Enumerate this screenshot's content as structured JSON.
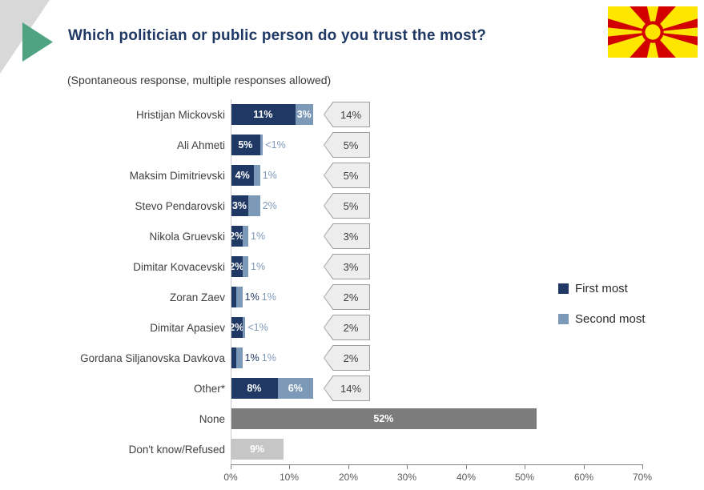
{
  "header": {
    "title": "Which politician or public person do you trust the most?",
    "subtitle": "(Spontaneous response, multiple responses allowed)"
  },
  "decoration": {
    "green_triangle_color": "#4FA383",
    "corner_color": "#D8D8D8"
  },
  "flag": {
    "name": "north-macedonia-flag",
    "red": "#D20000",
    "yellow": "#FFE600"
  },
  "legend": {
    "items": [
      {
        "key": "first",
        "label": "First most",
        "color": "#1F3864"
      },
      {
        "key": "second",
        "label": "Second most",
        "color": "#7D99B8"
      }
    ]
  },
  "chart_data": {
    "type": "bar",
    "orientation": "horizontal",
    "stacked": true,
    "title": "Which politician or public person do you trust the most?",
    "xlim": [
      0,
      70
    ],
    "x_ticks": [
      "0%",
      "10%",
      "20%",
      "30%",
      "40%",
      "50%",
      "60%",
      "70%"
    ],
    "grid": false,
    "legend_position": "right",
    "colors": {
      "first": "#1F3864",
      "second": "#7D99B8",
      "none": "#7C7C7C",
      "dk": "#C6C6C6",
      "callout_fill": "#EDEDED",
      "callout_border": "#9E9E9E"
    },
    "rows": [
      {
        "category": "Hristijan Mickovski",
        "total": "14%",
        "segments": [
          {
            "series": "first",
            "value": 11,
            "label": "11%",
            "label_pos": "inside"
          },
          {
            "series": "second",
            "value": 3,
            "label": "3%",
            "label_pos": "inside"
          }
        ]
      },
      {
        "category": "Ali Ahmeti",
        "total": "5%",
        "segments": [
          {
            "series": "first",
            "value": 5,
            "label": "5%",
            "label_pos": "inside"
          },
          {
            "series": "second",
            "value": 0.5,
            "label": "<1%",
            "label_pos": "outside"
          }
        ]
      },
      {
        "category": "Maksim Dimitrievski",
        "total": "5%",
        "segments": [
          {
            "series": "first",
            "value": 4,
            "label": "4%",
            "label_pos": "inside"
          },
          {
            "series": "second",
            "value": 1,
            "label": "1%",
            "label_pos": "outside"
          }
        ]
      },
      {
        "category": "Stevo Pendarovski",
        "total": "5%",
        "segments": [
          {
            "series": "first",
            "value": 3,
            "label": "3%",
            "label_pos": "inside"
          },
          {
            "series": "second",
            "value": 2,
            "label": "2%",
            "label_pos": "outside"
          }
        ]
      },
      {
        "category": "Nikola Gruevski",
        "total": "3%",
        "segments": [
          {
            "series": "first",
            "value": 2,
            "label": "2%",
            "label_pos": "inside"
          },
          {
            "series": "second",
            "value": 1,
            "label": "1%",
            "label_pos": "outside"
          }
        ]
      },
      {
        "category": "Dimitar Kovacevski",
        "total": "3%",
        "segments": [
          {
            "series": "first",
            "value": 2,
            "label": "2%",
            "label_pos": "inside"
          },
          {
            "series": "second",
            "value": 1,
            "label": "1%",
            "label_pos": "outside"
          }
        ]
      },
      {
        "category": "Zoran Zaev",
        "total": "2%",
        "segments": [
          {
            "series": "first",
            "value": 1,
            "label": "1%",
            "label_pos": "outside"
          },
          {
            "series": "second",
            "value": 1,
            "label": "1%",
            "label_pos": "outside"
          }
        ]
      },
      {
        "category": "Dimitar Apasiev",
        "total": "2%",
        "segments": [
          {
            "series": "first",
            "value": 2,
            "label": "2%",
            "label_pos": "inside"
          },
          {
            "series": "second",
            "value": 0.5,
            "label": "<1%",
            "label_pos": "outside"
          }
        ]
      },
      {
        "category": "Gordana Siljanovska Davkova",
        "total": "2%",
        "segments": [
          {
            "series": "first",
            "value": 1,
            "label": "1%",
            "label_pos": "outside"
          },
          {
            "series": "second",
            "value": 1,
            "label": "1%",
            "label_pos": "outside"
          }
        ]
      },
      {
        "category": "Other*",
        "total": "14%",
        "segments": [
          {
            "series": "first",
            "value": 8,
            "label": "8%",
            "label_pos": "inside"
          },
          {
            "series": "second",
            "value": 6,
            "label": "6%",
            "label_pos": "inside"
          }
        ]
      },
      {
        "category": "None",
        "total": null,
        "segments": [
          {
            "series": "none",
            "value": 52,
            "label": "52%",
            "label_pos": "inside"
          }
        ]
      },
      {
        "category": "Don't know/Refused",
        "total": null,
        "segments": [
          {
            "series": "dk",
            "value": 9,
            "label": "9%",
            "label_pos": "inside"
          }
        ]
      }
    ]
  }
}
